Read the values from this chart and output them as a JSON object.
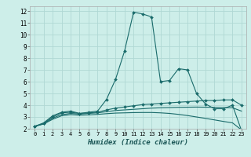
{
  "xlabel": "Humidex (Indice chaleur)",
  "background_color": "#cdeee9",
  "grid_color": "#b0d8d4",
  "line_color": "#1a6b6b",
  "xlim": [
    -0.5,
    23.5
  ],
  "ylim": [
    2,
    12.4
  ],
  "yticks": [
    2,
    3,
    4,
    5,
    6,
    7,
    8,
    9,
    10,
    11,
    12
  ],
  "xticks": [
    0,
    1,
    2,
    3,
    4,
    5,
    6,
    7,
    8,
    9,
    10,
    11,
    12,
    13,
    14,
    15,
    16,
    17,
    18,
    19,
    20,
    21,
    22,
    23
  ],
  "series": [
    {
      "x": [
        0,
        1,
        2,
        3,
        4,
        5,
        6,
        7,
        8,
        9,
        10,
        11,
        12,
        13,
        14,
        15,
        16,
        17,
        18,
        19,
        20,
        21,
        22,
        23
      ],
      "y": [
        2.2,
        2.5,
        3.1,
        3.4,
        3.5,
        3.3,
        3.4,
        3.5,
        4.5,
        6.2,
        8.6,
        11.9,
        11.75,
        11.5,
        6.0,
        6.1,
        7.1,
        7.0,
        5.0,
        4.1,
        3.7,
        3.7,
        4.0,
        1.85
      ],
      "marker": true
    },
    {
      "x": [
        0,
        1,
        2,
        3,
        4,
        5,
        6,
        7,
        8,
        9,
        10,
        11,
        12,
        13,
        14,
        15,
        16,
        17,
        18,
        19,
        20,
        21,
        22,
        23
      ],
      "y": [
        2.2,
        2.45,
        3.0,
        3.35,
        3.4,
        3.3,
        3.35,
        3.4,
        3.6,
        3.75,
        3.85,
        3.95,
        4.05,
        4.1,
        4.15,
        4.2,
        4.25,
        4.3,
        4.35,
        4.4,
        4.4,
        4.45,
        4.45,
        4.0
      ],
      "marker": true
    },
    {
      "x": [
        0,
        1,
        2,
        3,
        4,
        5,
        6,
        7,
        8,
        9,
        10,
        11,
        12,
        13,
        14,
        15,
        16,
        17,
        18,
        19,
        20,
        21,
        22,
        23
      ],
      "y": [
        2.2,
        2.42,
        2.9,
        3.2,
        3.3,
        3.25,
        3.3,
        3.35,
        3.45,
        3.55,
        3.6,
        3.65,
        3.7,
        3.75,
        3.78,
        3.8,
        3.82,
        3.83,
        3.84,
        3.83,
        3.82,
        3.8,
        3.78,
        3.5
      ],
      "marker": false
    },
    {
      "x": [
        0,
        1,
        2,
        3,
        4,
        5,
        6,
        7,
        8,
        9,
        10,
        11,
        12,
        13,
        14,
        15,
        16,
        17,
        18,
        19,
        20,
        21,
        22,
        23
      ],
      "y": [
        2.2,
        2.4,
        2.8,
        3.1,
        3.2,
        3.15,
        3.18,
        3.22,
        3.28,
        3.33,
        3.35,
        3.37,
        3.38,
        3.38,
        3.35,
        3.3,
        3.22,
        3.12,
        3.0,
        2.88,
        2.75,
        2.62,
        2.5,
        1.9
      ],
      "marker": false
    }
  ]
}
